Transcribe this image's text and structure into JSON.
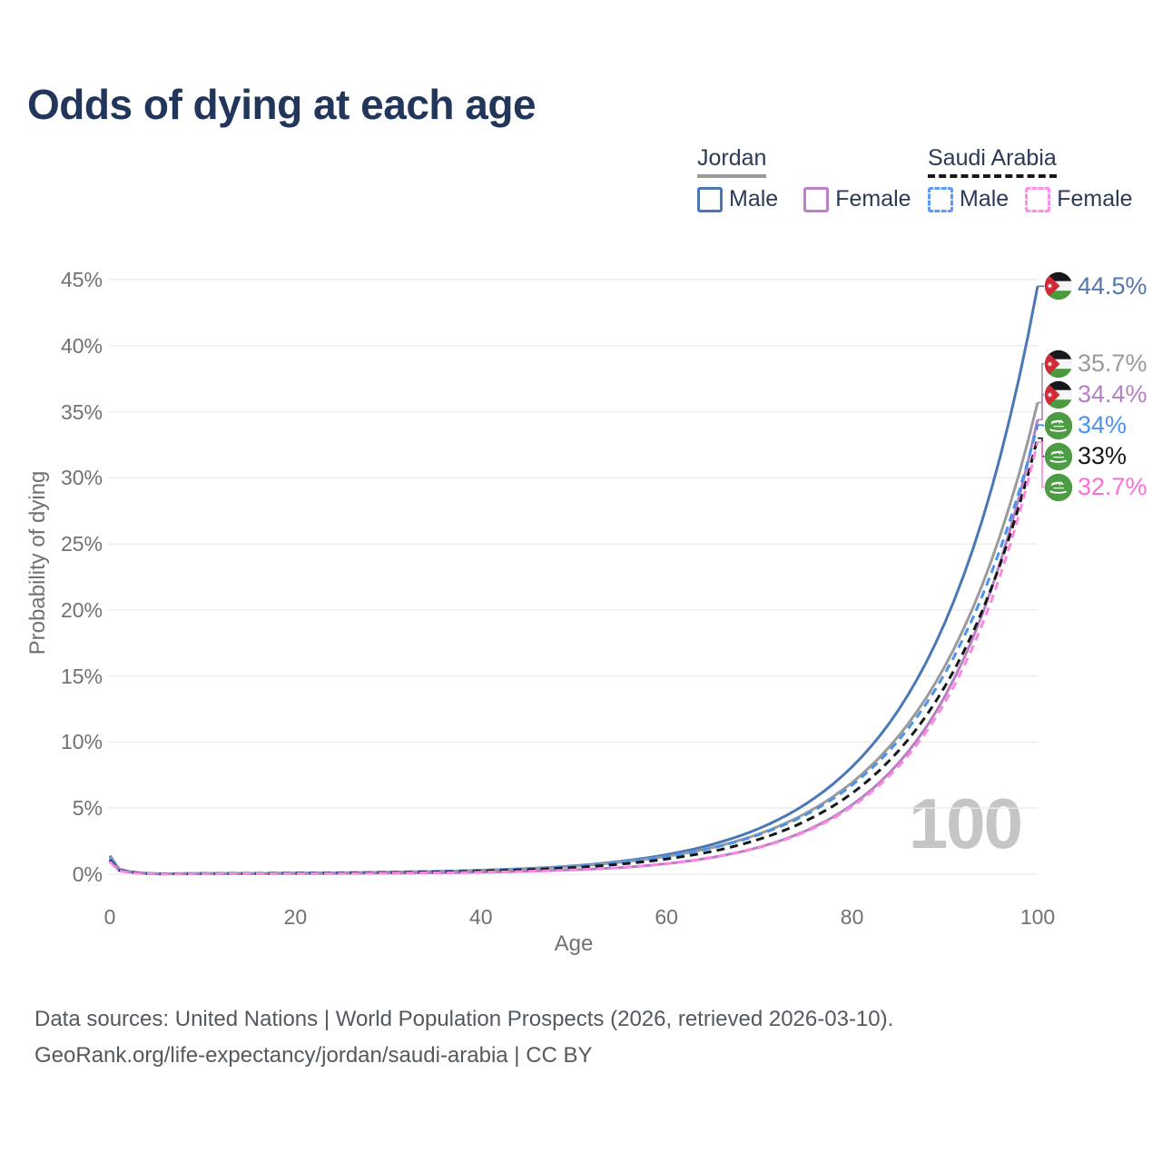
{
  "header": {
    "title": "Odds of dying at each age"
  },
  "legend": {
    "groups": [
      {
        "label": "Jordan",
        "line_style": "solid",
        "underline_color": "#9a9a9a",
        "items": [
          {
            "label": "Male",
            "color": "#4a78b5",
            "dashed": false
          },
          {
            "label": "Female",
            "color": "#bd7fc7",
            "dashed": false
          }
        ]
      },
      {
        "label": "Saudi Arabia",
        "line_style": "dashed",
        "underline_color": "#17181a",
        "items": [
          {
            "label": "Male",
            "color": "#5b9bf8",
            "dashed": true
          },
          {
            "label": "Female",
            "color": "#ff8cea",
            "dashed": true
          }
        ]
      }
    ]
  },
  "axes": {
    "y_title": "Probability of dying",
    "x_title": "Age",
    "y_ticks": [
      {
        "v": 0,
        "label": "0%"
      },
      {
        "v": 5,
        "label": "5%"
      },
      {
        "v": 10,
        "label": "10%"
      },
      {
        "v": 15,
        "label": "15%"
      },
      {
        "v": 20,
        "label": "20%"
      },
      {
        "v": 25,
        "label": "25%"
      },
      {
        "v": 30,
        "label": "30%"
      },
      {
        "v": 35,
        "label": "35%"
      },
      {
        "v": 40,
        "label": "40%"
      },
      {
        "v": 45,
        "label": "45%"
      }
    ],
    "x_ticks": [
      {
        "v": 0,
        "label": "0"
      },
      {
        "v": 20,
        "label": "20"
      },
      {
        "v": 40,
        "label": "40"
      },
      {
        "v": 60,
        "label": "60"
      },
      {
        "v": 80,
        "label": "80"
      },
      {
        "v": 100,
        "label": "100"
      }
    ]
  },
  "watermark_age": "100",
  "footer": {
    "line1": "Data sources: United Nations | World Population Prospects (2026, retrieved 2026-03-10).",
    "line2": "GeoRank.org/life-expectancy/jordan/saudi-arabia | CC BY"
  },
  "colors": {
    "title_text": "#21365a",
    "legend_text": "#2b3b57",
    "axis_text": "#6e7277",
    "gridline": "#ebebeb",
    "watermark": "#c5c5c5",
    "footer_text": "#525960"
  },
  "chart_data": {
    "type": "line",
    "title": "Odds of dying at each age",
    "xlabel": "Age",
    "ylabel": "Probability of dying",
    "xlim": [
      0,
      100
    ],
    "ylim": [
      0,
      45
    ],
    "grid": "horizontal",
    "legend_position": "top-right",
    "hover_age": "100",
    "x": [
      0,
      1,
      5,
      10,
      20,
      30,
      40,
      50,
      55,
      60,
      65,
      70,
      75,
      80,
      85,
      90,
      95,
      100
    ],
    "series": [
      {
        "name": "Jordan Male",
        "country": "Jordan",
        "sex": "Male",
        "flag": "jordan",
        "color": "#4a78b5",
        "dash": "solid",
        "end_value": 44.5,
        "end_label": "44.5%",
        "label_color": "#5377ad",
        "values": [
          1.4,
          0.39,
          0.04,
          0.05,
          0.08,
          0.15,
          0.3,
          0.63,
          0.97,
          1.48,
          2.27,
          3.47,
          5.31,
          8.13,
          12.43,
          19.03,
          29.11,
          44.5
        ]
      },
      {
        "name": "Jordan Both sexes",
        "country": "Jordan",
        "sex": "Both",
        "flag": "jordan",
        "color": "#9b9b9b",
        "dash": "solid",
        "end_value": 35.7,
        "end_label": "35.7%",
        "label_color": "#9b9b9b",
        "values": [
          1.31,
          0.36,
          0.03,
          0.05,
          0.08,
          0.14,
          0.29,
          0.6,
          0.91,
          1.35,
          2.03,
          3.06,
          4.61,
          6.94,
          10.45,
          15.74,
          23.7,
          35.7
        ]
      },
      {
        "name": "Jordan Female",
        "country": "Jordan",
        "sex": "Female",
        "flag": "jordan",
        "color": "#b57fc0",
        "dash": "solid",
        "end_value": 34.4,
        "end_label": "34.4%",
        "label_color": "#b67fc6",
        "values": [
          1.1,
          0.3,
          0.03,
          0.03,
          0.05,
          0.08,
          0.15,
          0.34,
          0.5,
          0.8,
          1.28,
          2.05,
          3.28,
          5.25,
          8.41,
          13.46,
          21.55,
          34.4
        ]
      },
      {
        "name": "Saudi Arabia Male",
        "country": "Saudi Arabia",
        "sex": "Male",
        "flag": "saudi-arabia",
        "color": "#4b93ec",
        "dash": "dashed",
        "end_value": 34.0,
        "end_label": "34%",
        "label_color": "#4b93ec",
        "values": [
          1.21,
          0.34,
          0.03,
          0.05,
          0.08,
          0.15,
          0.29,
          0.59,
          0.89,
          1.33,
          2.0,
          3.0,
          4.5,
          6.75,
          10.13,
          15.19,
          22.77,
          34.0
        ]
      },
      {
        "name": "Saudi Arabia Both sexes",
        "country": "Saudi Arabia",
        "sex": "Both",
        "flag": "saudi-arabia",
        "color": "#17181a",
        "dash": "dashed",
        "end_value": 33.0,
        "end_label": "33%",
        "label_color": "#17181a",
        "values": [
          1.06,
          0.29,
          0.03,
          0.04,
          0.07,
          0.12,
          0.24,
          0.5,
          0.76,
          1.15,
          1.74,
          2.65,
          4.03,
          6.13,
          9.33,
          14.2,
          21.62,
          33.0
        ]
      },
      {
        "name": "Saudi Arabia Female",
        "country": "Saudi Arabia",
        "sex": "Female",
        "flag": "saudi-arabia",
        "color": "#fb87e0",
        "dash": "dashed",
        "end_value": 32.7,
        "end_label": "32.7%",
        "label_color": "#fa6fd7",
        "values": [
          0.95,
          0.26,
          0.02,
          0.03,
          0.04,
          0.08,
          0.15,
          0.33,
          0.5,
          0.8,
          1.27,
          2.02,
          3.22,
          5.12,
          8.16,
          12.99,
          20.68,
          32.7
        ]
      }
    ]
  }
}
